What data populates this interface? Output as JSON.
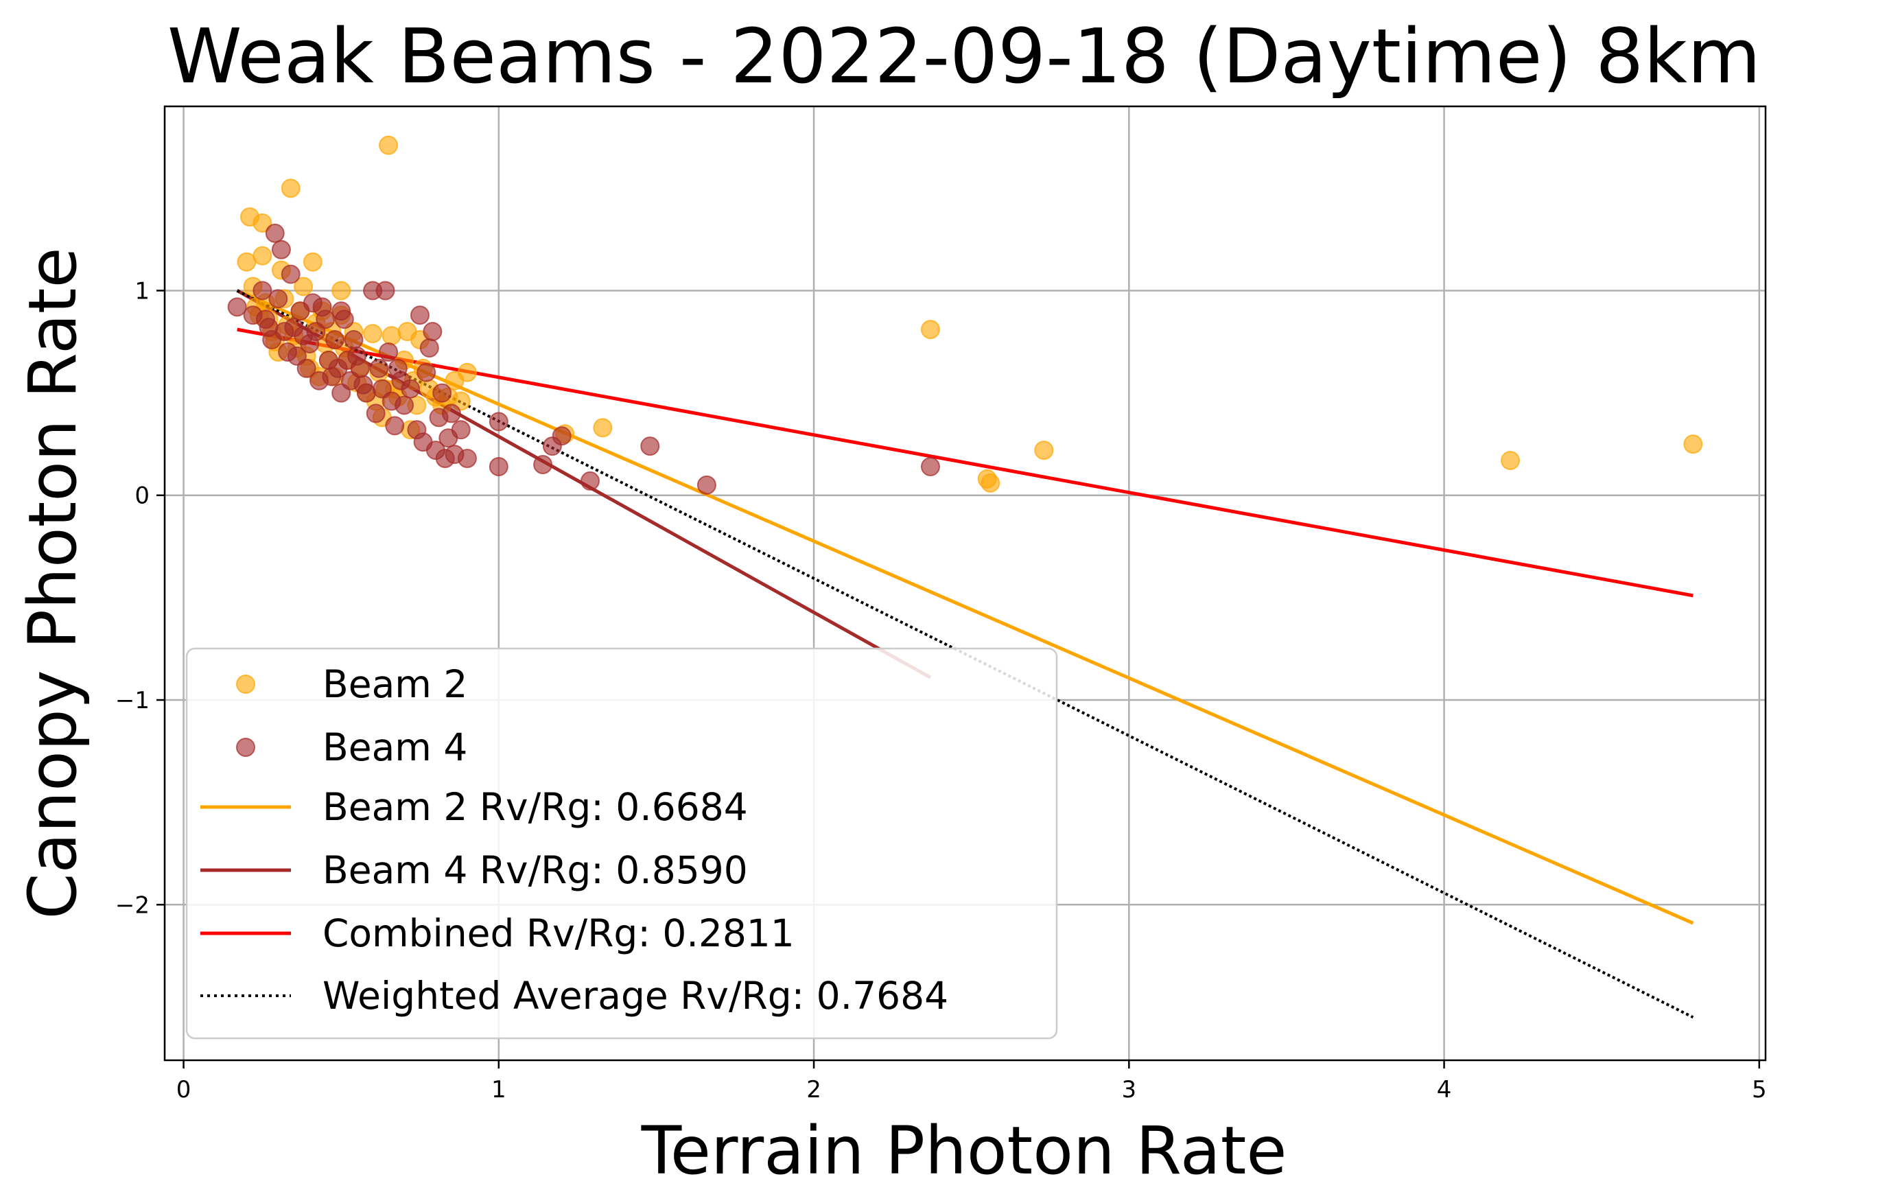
{
  "chart_data": {
    "type": "scatter",
    "title": "Weak Beams - 2022-09-18 (Daytime) 8km",
    "xlabel": "Terrain Photon Rate",
    "ylabel": "Canopy Photon Rate",
    "xlim": [
      -0.06,
      5.02
    ],
    "ylim": [
      -2.76,
      1.9
    ],
    "xticks": [
      0,
      1,
      2,
      3,
      4,
      5
    ],
    "yticks": [
      -2,
      -1,
      0,
      1
    ],
    "xtick_labels": [
      "0",
      "1",
      "2",
      "3",
      "4",
      "5"
    ],
    "ytick_labels": [
      "−2",
      "−1",
      "0",
      "1"
    ],
    "grid": true,
    "legend_position": "lower-left",
    "colors": {
      "beam2": "#FFA500",
      "beam4": "#A52A2A",
      "combined": "#FF0000",
      "weighted": "#000000",
      "grid": "#b0b0b0"
    },
    "series": [
      {
        "name": "Beam 2",
        "kind": "scatter",
        "points": [
          [
            0.2,
            1.14
          ],
          [
            0.21,
            1.36
          ],
          [
            0.22,
            1.02
          ],
          [
            0.23,
            0.92
          ],
          [
            0.24,
            0.88
          ],
          [
            0.25,
            1.33
          ],
          [
            0.25,
            1.17
          ],
          [
            0.26,
            0.94
          ],
          [
            0.27,
            0.86
          ],
          [
            0.28,
            0.8
          ],
          [
            0.29,
            0.75
          ],
          [
            0.3,
            0.7
          ],
          [
            0.31,
            1.1
          ],
          [
            0.32,
            0.96
          ],
          [
            0.33,
            0.83
          ],
          [
            0.34,
            1.5
          ],
          [
            0.35,
            0.78
          ],
          [
            0.36,
            0.72
          ],
          [
            0.37,
            0.9
          ],
          [
            0.38,
            1.02
          ],
          [
            0.39,
            0.68
          ],
          [
            0.4,
            0.62
          ],
          [
            0.41,
            1.14
          ],
          [
            0.42,
            0.84
          ],
          [
            0.43,
            0.58
          ],
          [
            0.44,
            0.9
          ],
          [
            0.45,
            0.74
          ],
          [
            0.46,
            0.66
          ],
          [
            0.47,
            0.8
          ],
          [
            0.48,
            0.58
          ],
          [
            0.5,
            1.0
          ],
          [
            0.5,
            0.88
          ],
          [
            0.51,
            0.72
          ],
          [
            0.52,
            0.66
          ],
          [
            0.54,
            0.8
          ],
          [
            0.55,
            0.55
          ],
          [
            0.56,
            0.62
          ],
          [
            0.58,
            0.5
          ],
          [
            0.6,
            0.79
          ],
          [
            0.61,
            0.46
          ],
          [
            0.62,
            0.6
          ],
          [
            0.63,
            0.38
          ],
          [
            0.64,
            0.52
          ],
          [
            0.65,
            1.71
          ],
          [
            0.66,
            0.78
          ],
          [
            0.67,
            0.52
          ],
          [
            0.68,
            0.48
          ],
          [
            0.7,
            0.66
          ],
          [
            0.71,
            0.8
          ],
          [
            0.72,
            0.32
          ],
          [
            0.73,
            0.56
          ],
          [
            0.74,
            0.44
          ],
          [
            0.75,
            0.76
          ],
          [
            0.76,
            0.62
          ],
          [
            0.78,
            0.52
          ],
          [
            0.8,
            0.48
          ],
          [
            0.82,
            0.44
          ],
          [
            0.84,
            0.48
          ],
          [
            0.86,
            0.56
          ],
          [
            0.88,
            0.46
          ],
          [
            0.9,
            0.6
          ],
          [
            1.21,
            0.3
          ],
          [
            1.33,
            0.33
          ],
          [
            2.37,
            0.81
          ],
          [
            2.55,
            0.08
          ],
          [
            2.56,
            0.06
          ],
          [
            2.73,
            0.22
          ],
          [
            4.21,
            0.17
          ],
          [
            4.79,
            0.25
          ]
        ]
      },
      {
        "name": "Beam 4",
        "kind": "scatter",
        "points": [
          [
            0.17,
            0.92
          ],
          [
            0.22,
            0.88
          ],
          [
            0.25,
            1.0
          ],
          [
            0.26,
            0.86
          ],
          [
            0.27,
            0.82
          ],
          [
            0.28,
            0.76
          ],
          [
            0.29,
            1.28
          ],
          [
            0.3,
            0.96
          ],
          [
            0.31,
            1.2
          ],
          [
            0.32,
            0.8
          ],
          [
            0.33,
            0.7
          ],
          [
            0.34,
            1.08
          ],
          [
            0.35,
            0.82
          ],
          [
            0.36,
            0.68
          ],
          [
            0.37,
            0.9
          ],
          [
            0.38,
            0.78
          ],
          [
            0.39,
            0.62
          ],
          [
            0.4,
            0.74
          ],
          [
            0.41,
            0.94
          ],
          [
            0.42,
            0.8
          ],
          [
            0.43,
            0.56
          ],
          [
            0.44,
            0.92
          ],
          [
            0.45,
            0.86
          ],
          [
            0.46,
            0.66
          ],
          [
            0.47,
            0.58
          ],
          [
            0.48,
            0.76
          ],
          [
            0.49,
            0.62
          ],
          [
            0.5,
            0.5
          ],
          [
            0.5,
            0.9
          ],
          [
            0.51,
            0.86
          ],
          [
            0.52,
            0.66
          ],
          [
            0.53,
            0.56
          ],
          [
            0.54,
            0.76
          ],
          [
            0.55,
            0.68
          ],
          [
            0.56,
            0.62
          ],
          [
            0.57,
            0.54
          ],
          [
            0.58,
            0.5
          ],
          [
            0.6,
            1.0
          ],
          [
            0.61,
            0.4
          ],
          [
            0.62,
            0.62
          ],
          [
            0.63,
            0.52
          ],
          [
            0.64,
            1.0
          ],
          [
            0.65,
            0.7
          ],
          [
            0.66,
            0.46
          ],
          [
            0.67,
            0.34
          ],
          [
            0.68,
            0.62
          ],
          [
            0.69,
            0.56
          ],
          [
            0.7,
            0.44
          ],
          [
            0.72,
            0.52
          ],
          [
            0.74,
            0.32
          ],
          [
            0.75,
            0.88
          ],
          [
            0.76,
            0.26
          ],
          [
            0.77,
            0.6
          ],
          [
            0.78,
            0.72
          ],
          [
            0.79,
            0.8
          ],
          [
            0.8,
            0.22
          ],
          [
            0.81,
            0.38
          ],
          [
            0.82,
            0.5
          ],
          [
            0.83,
            0.18
          ],
          [
            0.84,
            0.28
          ],
          [
            0.85,
            0.4
          ],
          [
            0.86,
            0.2
          ],
          [
            0.88,
            0.32
          ],
          [
            0.9,
            0.18
          ],
          [
            1.0,
            0.36
          ],
          [
            1.0,
            0.14
          ],
          [
            1.14,
            0.15
          ],
          [
            1.17,
            0.24
          ],
          [
            1.2,
            0.29
          ],
          [
            1.29,
            0.07
          ],
          [
            1.48,
            0.24
          ],
          [
            1.66,
            0.05
          ],
          [
            2.37,
            0.14
          ]
        ]
      },
      {
        "name": "Beam 2 Rv/Rg: 0.6684",
        "kind": "line",
        "points": [
          [
            0.17,
            1.0
          ],
          [
            4.79,
            -2.09
          ]
        ]
      },
      {
        "name": "Beam 4 Rv/Rg: 0.8590",
        "kind": "line",
        "points": [
          [
            0.17,
            1.0
          ],
          [
            2.37,
            -0.89
          ]
        ]
      },
      {
        "name": "Combined Rv/Rg: 0.2811",
        "kind": "line",
        "points": [
          [
            0.17,
            0.81
          ],
          [
            4.79,
            -0.49
          ]
        ]
      },
      {
        "name": "Weighted Average Rv/Rg: 0.7684",
        "kind": "line",
        "style": "dotted",
        "points": [
          [
            0.17,
            1.0
          ],
          [
            4.79,
            -2.55
          ]
        ]
      }
    ]
  }
}
